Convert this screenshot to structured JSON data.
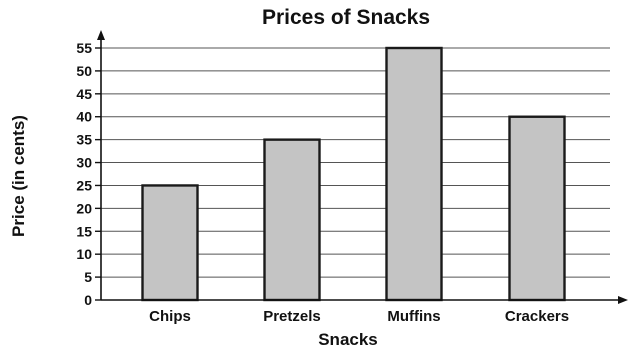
{
  "chart_data": {
    "type": "bar",
    "title": "Prices of Snacks",
    "xlabel": "Snacks",
    "ylabel": "Price (in cents)",
    "categories": [
      "Chips",
      "Pretzels",
      "Muffins",
      "Crackers"
    ],
    "values": [
      25,
      35,
      55,
      40
    ],
    "ylim": [
      0,
      55
    ],
    "yticks": [
      0,
      5,
      10,
      15,
      20,
      25,
      30,
      35,
      40,
      45,
      50,
      55
    ],
    "grid": true,
    "bar_color": "#c4c4c4",
    "bar_edge_color": "#1a1a1a"
  }
}
